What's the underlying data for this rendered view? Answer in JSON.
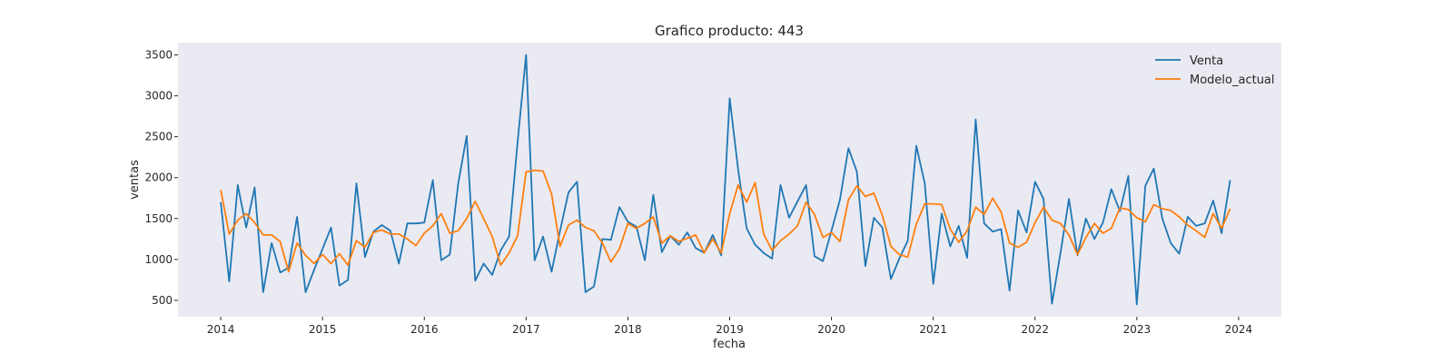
{
  "chart_data": {
    "type": "line",
    "title": "Grafico producto: 443",
    "xlabel": "fecha",
    "ylabel": "ventas",
    "x_start": "2014-01",
    "x_frequency": "monthly",
    "xlim": [
      2013.58,
      2024.42
    ],
    "ylim": [
      300,
      3650
    ],
    "xticks": [
      2014,
      2015,
      2016,
      2017,
      2018,
      2019,
      2020,
      2021,
      2022,
      2023,
      2024
    ],
    "xtick_labels": [
      "2014",
      "2015",
      "2016",
      "2017",
      "2018",
      "2019",
      "2020",
      "2021",
      "2022",
      "2023",
      "2024"
    ],
    "yticks": [
      500,
      1000,
      1500,
      2000,
      2500,
      3000,
      3500
    ],
    "ytick_labels": [
      "500",
      "1000",
      "1500",
      "2000",
      "2500",
      "3000",
      "3500"
    ],
    "grid": false,
    "background": "#eaeaf2",
    "legend_position": "top-right",
    "series": [
      {
        "name": "Venta",
        "color": "#1f77b4",
        "values": [
          1700,
          730,
          1910,
          1390,
          1880,
          600,
          1200,
          840,
          900,
          1520,
          600,
          870,
          1130,
          1390,
          680,
          750,
          1930,
          1030,
          1340,
          1420,
          1350,
          950,
          1440,
          1440,
          1450,
          1970,
          990,
          1060,
          1930,
          2510,
          740,
          950,
          810,
          1110,
          1280,
          2440,
          3500,
          990,
          1280,
          850,
          1350,
          1820,
          1950,
          600,
          670,
          1250,
          1240,
          1640,
          1460,
          1400,
          990,
          1790,
          1090,
          1290,
          1180,
          1330,
          1140,
          1080,
          1300,
          1050,
          2970,
          2100,
          1380,
          1180,
          1080,
          1010,
          1910,
          1510,
          1710,
          1910,
          1040,
          980,
          1350,
          1730,
          2360,
          2070,
          920,
          1510,
          1390,
          760,
          1010,
          1230,
          2390,
          1930,
          700,
          1560,
          1160,
          1410,
          1020,
          2710,
          1440,
          1340,
          1370,
          620,
          1600,
          1330,
          1950,
          1740,
          460,
          1080,
          1740,
          1050,
          1500,
          1250,
          1450,
          1860,
          1590,
          2020,
          450,
          1900,
          2110,
          1500,
          1200,
          1070,
          1520,
          1410,
          1440,
          1720,
          1320,
          1970
        ]
      },
      {
        "name": "Modelo_actual",
        "color": "#ff7f0e",
        "values": [
          1850,
          1310,
          1480,
          1560,
          1450,
          1300,
          1300,
          1220,
          850,
          1200,
          1050,
          950,
          1060,
          950,
          1070,
          930,
          1230,
          1150,
          1330,
          1360,
          1310,
          1310,
          1250,
          1170,
          1320,
          1410,
          1560,
          1320,
          1350,
          1500,
          1710,
          1500,
          1280,
          930,
          1080,
          1290,
          2070,
          2090,
          2080,
          1800,
          1160,
          1420,
          1480,
          1390,
          1350,
          1200,
          970,
          1130,
          1440,
          1380,
          1440,
          1520,
          1200,
          1290,
          1220,
          1260,
          1300,
          1080,
          1250,
          1080,
          1560,
          1910,
          1700,
          1940,
          1310,
          1110,
          1230,
          1310,
          1410,
          1700,
          1550,
          1270,
          1330,
          1220,
          1730,
          1900,
          1770,
          1810,
          1540,
          1160,
          1060,
          1030,
          1430,
          1680,
          1680,
          1670,
          1370,
          1210,
          1350,
          1640,
          1550,
          1750,
          1580,
          1200,
          1150,
          1210,
          1450,
          1640,
          1480,
          1440,
          1300,
          1060,
          1270,
          1440,
          1320,
          1380,
          1630,
          1610,
          1510,
          1460,
          1670,
          1620,
          1600,
          1520,
          1420,
          1350,
          1270,
          1560,
          1380,
          1620
        ]
      }
    ]
  }
}
